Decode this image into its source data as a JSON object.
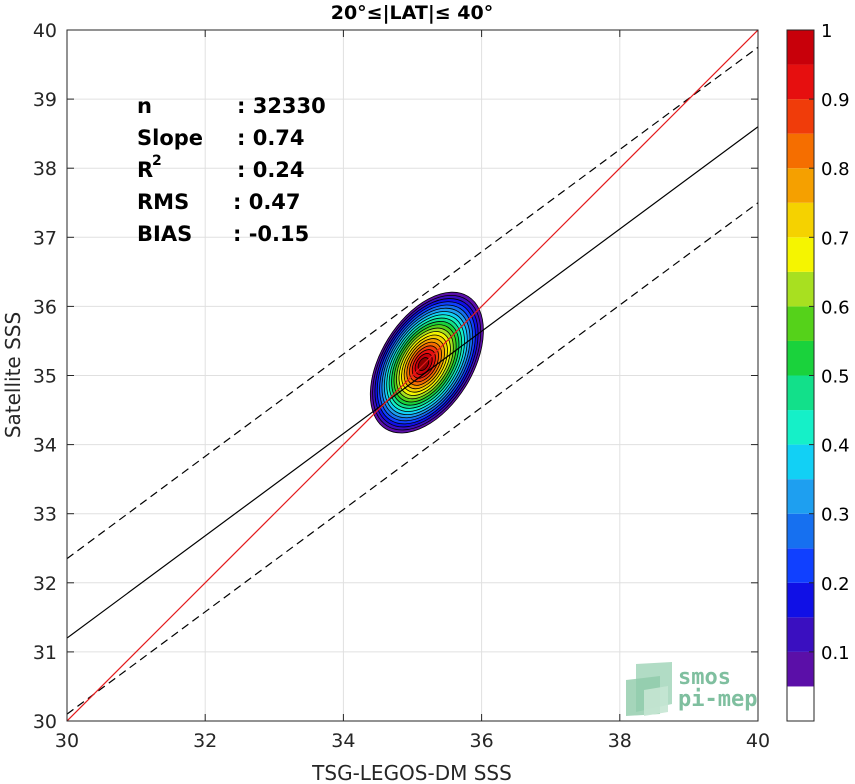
{
  "chart_data": {
    "type": "heatmap",
    "title": "20°≤|LAT|≤ 40°",
    "xlabel": "TSG-LEGOS-DM SSS",
    "ylabel": "Satellite SSS",
    "xlim": [
      30,
      40
    ],
    "ylim": [
      30,
      40
    ],
    "xticks": [
      "30",
      "32",
      "34",
      "36",
      "38",
      "40"
    ],
    "yticks": [
      "30",
      "31",
      "32",
      "33",
      "34",
      "35",
      "36",
      "37",
      "38",
      "39",
      "40"
    ],
    "grid": true,
    "stats": [
      {
        "label": "n",
        "value": ": 32330"
      },
      {
        "label": "Slope",
        "value": ": 0.74"
      },
      {
        "label": "R",
        "sup": "2",
        "value": ": 0.24"
      },
      {
        "label": "RMS",
        "value": ": 0.47"
      },
      {
        "label": "BIAS",
        "value": ": -0.15"
      }
    ],
    "lines": {
      "identity": {
        "x": [
          30,
          40
        ],
        "y": [
          30,
          40
        ],
        "color": "#e41a1c",
        "style": "solid"
      },
      "regression": {
        "x": [
          30,
          40
        ],
        "y": [
          31.2,
          38.6
        ],
        "color": "#000000",
        "style": "solid"
      },
      "upper_bound": {
        "x": [
          30,
          40
        ],
        "y": [
          32.35,
          39.75
        ],
        "color": "#000000",
        "style": "dashed"
      },
      "lower_bound": {
        "x": [
          30,
          40
        ],
        "y": [
          30.1,
          37.5
        ],
        "color": "#000000",
        "style": "dashed"
      }
    },
    "density_peak": {
      "x": 35.15,
      "y": 35.1
    },
    "colorbar": {
      "range": [
        0,
        1
      ],
      "ticks": [
        "0.1",
        "0.2",
        "0.3",
        "0.4",
        "0.5",
        "0.6",
        "0.7",
        "0.8",
        "0.9",
        "1"
      ],
      "levels": [
        0.05,
        0.1,
        0.15,
        0.2,
        0.25,
        0.3,
        0.35,
        0.4,
        0.45,
        0.5,
        0.55,
        0.6,
        0.65,
        0.7,
        0.75,
        0.8,
        0.85,
        0.9,
        0.95,
        1.0
      ],
      "colors": [
        "#ffffff",
        "#5b0fa8",
        "#3a0fc0",
        "#1010e6",
        "#1040ff",
        "#1670f0",
        "#1e9ff0",
        "#12d0f5",
        "#15f0c8",
        "#12e08a",
        "#1ad23c",
        "#55d21a",
        "#a8e020",
        "#f5f500",
        "#f5d200",
        "#f5a000",
        "#f56e00",
        "#f03c0a",
        "#e60f0f",
        "#c8000a",
        "#8c0000"
      ]
    }
  },
  "watermark": {
    "line1": "smos",
    "line2": "pi-mep"
  }
}
